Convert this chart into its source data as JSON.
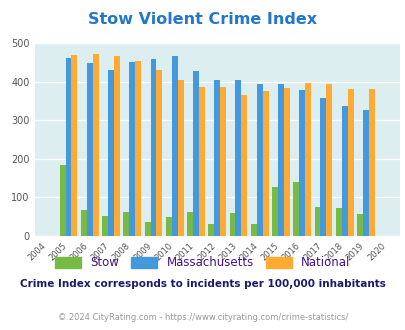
{
  "title": "Stow Violent Crime Index",
  "years": [
    2004,
    2005,
    2006,
    2007,
    2008,
    2009,
    2010,
    2011,
    2012,
    2013,
    2014,
    2015,
    2016,
    2017,
    2018,
    2019,
    2020
  ],
  "stow": [
    0,
    183,
    67,
    52,
    63,
    36,
    50,
    63,
    32,
    60,
    32,
    128,
    140,
    75,
    73,
    57,
    0
  ],
  "massachusetts": [
    0,
    460,
    448,
    430,
    450,
    458,
    465,
    428,
    405,
    405,
    394,
    394,
    378,
    357,
    337,
    327,
    0
  ],
  "national": [
    0,
    469,
    472,
    466,
    454,
    431,
    404,
    387,
    387,
    366,
    375,
    383,
    397,
    394,
    380,
    380,
    0
  ],
  "stow_color": "#77bb44",
  "mass_color": "#4499dd",
  "national_color": "#ffaa33",
  "plot_bg": "#ddeef0",
  "ylim": [
    0,
    500
  ],
  "yticks": [
    0,
    100,
    200,
    300,
    400,
    500
  ],
  "subtitle": "Crime Index corresponds to incidents per 100,000 inhabitants",
  "footer": "© 2024 CityRating.com - https://www.cityrating.com/crime-statistics/",
  "title_color": "#2277cc",
  "subtitle_color": "#1a1a6e",
  "footer_color": "#999999",
  "legend_label_color": "#441188"
}
